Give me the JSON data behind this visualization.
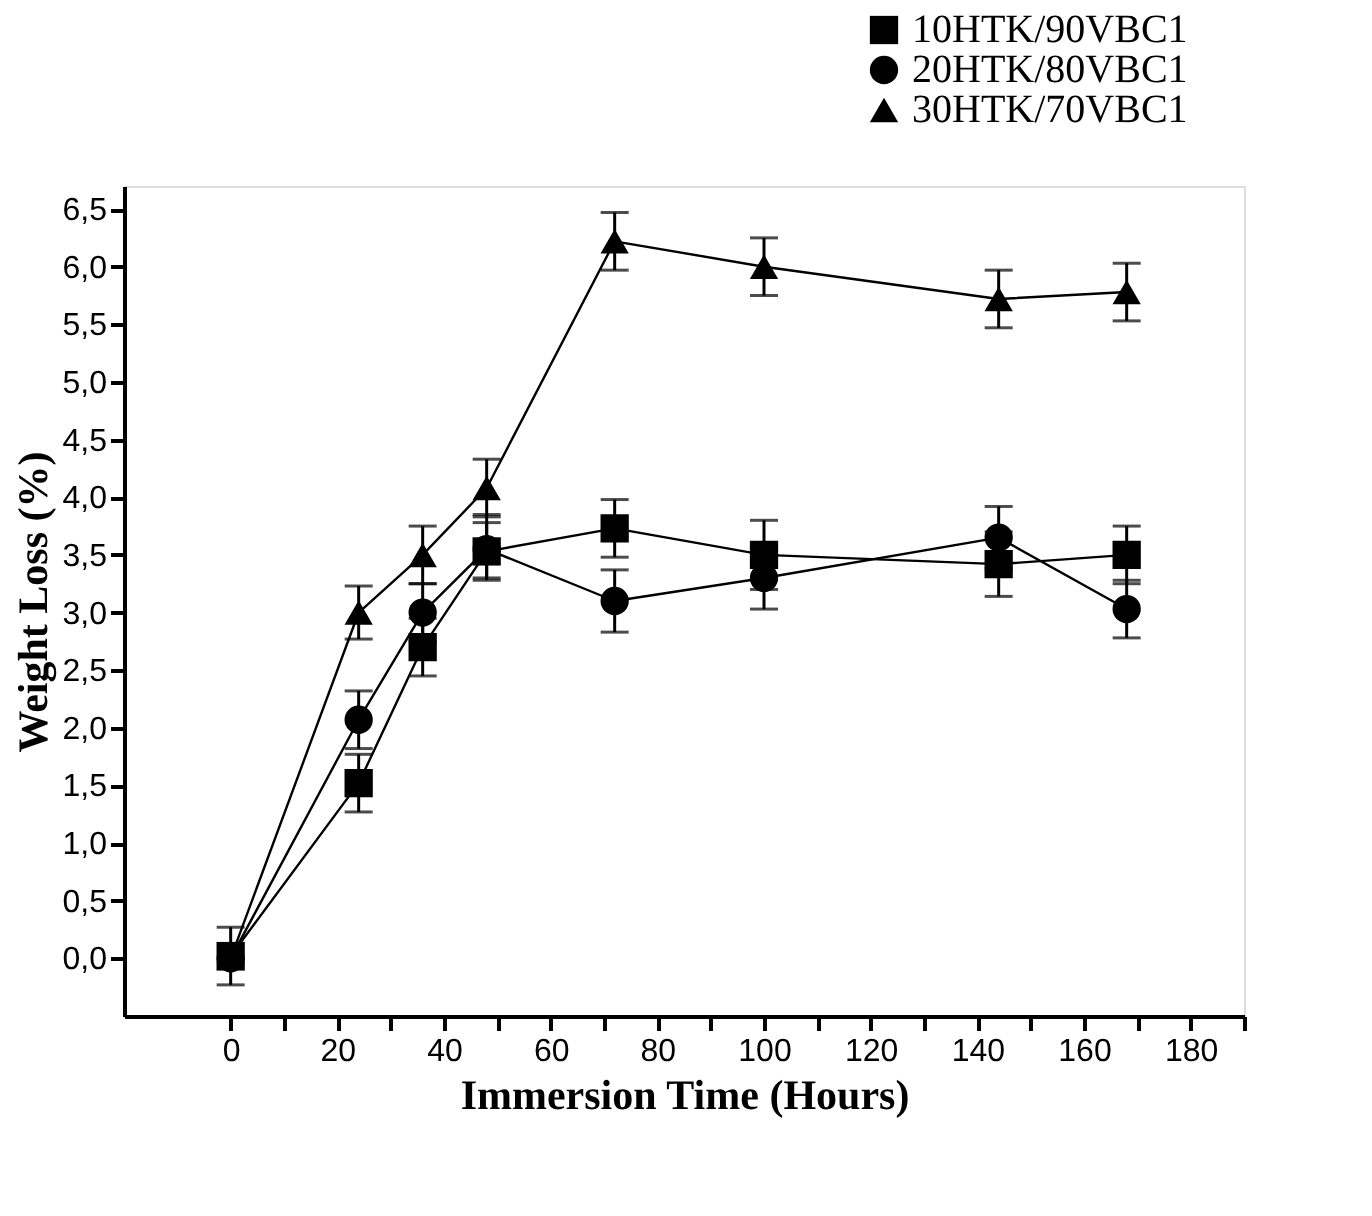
{
  "chart_data": {
    "type": "line",
    "xlabel": "Immersion Time (Hours)",
    "ylabel": "Weight Loss  (%)",
    "x": [
      0,
      24,
      36,
      48,
      72,
      100,
      144,
      168
    ],
    "series": [
      {
        "name": "10HTK/90VBC1",
        "color": "#000000",
        "marker": "square",
        "values": [
          0.02,
          1.52,
          2.7,
          3.53,
          3.73,
          3.5,
          3.42,
          3.5
        ],
        "errors": [
          0.25,
          0.25,
          0.25,
          0.25,
          0.25,
          0.3,
          0.28,
          0.25
        ]
      },
      {
        "name": "20HTK/80VBC1",
        "color": "#000000",
        "marker": "circle",
        "values": [
          0.0,
          2.07,
          3.0,
          3.55,
          3.1,
          3.3,
          3.65,
          3.03
        ],
        "errors": [
          null,
          0.25,
          0.25,
          [
            3.3,
            3.85
          ],
          0.27,
          0.27,
          0.27,
          0.25
        ]
      },
      {
        "name": "30HTK/70VBC1",
        "color": "#000000",
        "marker": "triangle",
        "values": [
          0.0,
          3.0,
          3.5,
          4.08,
          6.22,
          6.0,
          5.72,
          5.78
        ],
        "errors": [
          null,
          0.23,
          0.25,
          0.25,
          0.25,
          0.25,
          0.25,
          0.25
        ]
      }
    ],
    "xlim": [
      -20,
      190
    ],
    "xticks": [
      0,
      {
        "value": 10,
        "label": null
      },
      20,
      {
        "value": 30,
        "label": null
      },
      40,
      {
        "value": 50,
        "label": null
      },
      60,
      {
        "value": 70,
        "label": null
      },
      80,
      {
        "value": 90,
        "label": null
      },
      100,
      {
        "value": 110,
        "label": null
      },
      120,
      {
        "value": 130,
        "label": null
      },
      140,
      {
        "value": 150,
        "label": null
      },
      160,
      {
        "value": 170,
        "label": null
      },
      180,
      {
        "value": 190,
        "label": null
      }
    ],
    "ylim": [
      -0.5,
      6.7
    ],
    "yticks": [
      {
        "value": 0,
        "label": "0,0"
      },
      {
        "value": 0.5,
        "label": "0,5"
      },
      {
        "value": 1,
        "label": "1,0"
      },
      {
        "value": 1.5,
        "label": "1,5"
      },
      {
        "value": 2,
        "label": "2,0"
      },
      {
        "value": 2.5,
        "label": "2,5"
      },
      {
        "value": 3,
        "label": "3,0"
      },
      {
        "value": 3.5,
        "label": "3,5"
      },
      {
        "value": 4,
        "label": "4,0"
      },
      {
        "value": 4.5,
        "label": "4,5"
      },
      {
        "value": 5,
        "label": "5,0"
      },
      {
        "value": 5.5,
        "label": "5,5"
      },
      {
        "value": 6,
        "label": "6,0"
      },
      {
        "value": 6.5,
        "label": "6,5"
      }
    ],
    "grid": false,
    "legend": "top right",
    "line_style": "solid"
  }
}
